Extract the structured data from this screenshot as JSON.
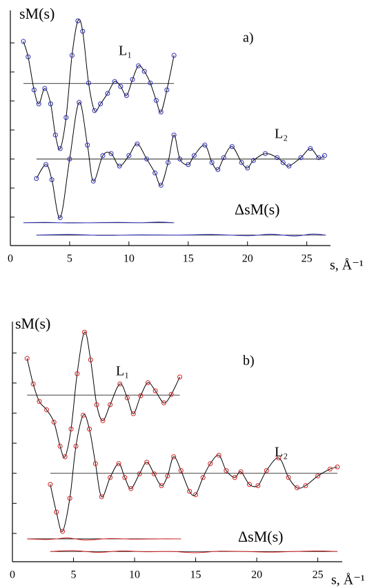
{
  "chart_data": [
    {
      "type": "line",
      "panel_label": "a)",
      "ylabel": "sM(s)",
      "xlabel": "s, Å⁻¹",
      "xlim": [
        0,
        27
      ],
      "xticks": [
        0,
        5,
        10,
        15,
        20,
        25
      ],
      "ylim": [
        -0.98,
        7.12
      ],
      "yticks": [
        0,
        1,
        2,
        3,
        4,
        5,
        6
      ],
      "annotations": [
        {
          "text": "ΔsM(s)"
        }
      ],
      "series": [
        {
          "name": "L₁",
          "color": "#2a2ab8",
          "line_color": "#000000",
          "markers": true,
          "baseline": 4.6,
          "x": [
            1.1,
            1.5,
            2,
            2.4,
            2.9,
            3.4,
            3.8,
            4.2,
            4.7,
            5.2,
            5.7,
            6.1,
            6.6,
            7.1,
            7.6,
            8.2,
            8.8,
            9.3,
            9.8,
            10.3,
            10.8,
            11.3,
            11.8,
            12.3,
            12.7,
            13.2,
            13.8
          ],
          "values": [
            6.05,
            5.52,
            4.38,
            3.9,
            4.43,
            3.9,
            2.83,
            2.36,
            3.43,
            5.57,
            6.76,
            6.4,
            4.62,
            3.67,
            3.9,
            4.26,
            4.67,
            4.5,
            4.19,
            4.74,
            5.21,
            5.02,
            4.62,
            4.02,
            3.62,
            4.38,
            5.57
          ]
        },
        {
          "name": "L₂",
          "color": "#2a2ab8",
          "line_color": "#000000",
          "markers": true,
          "baseline": 2.0,
          "x": [
            2.2,
            3,
            3.5,
            4.2,
            5,
            5.8,
            6.5,
            7,
            7.8,
            8.5,
            9.2,
            10,
            10.7,
            11.5,
            12.2,
            12.7,
            13.3,
            13.8,
            14.3,
            15,
            15.5,
            16.4,
            17,
            17.5,
            18,
            18.7,
            19.5,
            20,
            20.5,
            21.5,
            22.5,
            23,
            23.5,
            24.5,
            25.3,
            26,
            26.5
          ],
          "values": [
            1.33,
            1.81,
            1.29,
            -0.02,
            2.0,
            3.95,
            2.48,
            1.24,
            2.12,
            2.19,
            1.76,
            2.12,
            2.52,
            2.0,
            1.52,
            1.1,
            1.88,
            2.83,
            2.0,
            1.81,
            2.12,
            2.48,
            1.88,
            1.64,
            2.05,
            2.43,
            1.88,
            1.69,
            1.95,
            2.19,
            2.05,
            1.88,
            1.76,
            2.05,
            2.36,
            2.05,
            2.12
          ]
        },
        {
          "color": "#2a2ab8",
          "line_color": "#2a2ab8",
          "markers": false,
          "baseline": -0.19,
          "x": [
            1.1,
            3,
            5,
            7,
            9,
            11,
            12.5,
            13.8
          ],
          "values": [
            -0.19,
            -0.18,
            -0.2,
            -0.19,
            -0.18,
            -0.19,
            -0.17,
            -0.19
          ]
        },
        {
          "color": "#2a2ab8",
          "line_color": "#2a2ab8",
          "markers": false,
          "baseline": -0.62,
          "x": [
            2.2,
            5,
            8,
            11,
            14,
            17,
            20,
            22,
            24,
            25.5,
            26.6
          ],
          "values": [
            -0.62,
            -0.6,
            -0.63,
            -0.61,
            -0.62,
            -0.6,
            -0.64,
            -0.59,
            -0.65,
            -0.58,
            -0.62
          ]
        }
      ]
    },
    {
      "type": "line",
      "panel_label": "b)",
      "ylabel": "sM(s)",
      "xlabel": "s, Å⁻¹",
      "xlim": [
        0,
        27
      ],
      "xticks": [
        0,
        5,
        10,
        15,
        20,
        25
      ],
      "ylim": [
        -0.94,
        7.04
      ],
      "yticks": [
        0,
        1,
        2,
        3,
        4,
        5,
        6
      ],
      "annotations": [
        {
          "text": "ΔsM(s)"
        }
      ],
      "series": [
        {
          "name": "L₁",
          "color": "#d42020",
          "line_color": "#000000",
          "markers": true,
          "baseline": 4.6,
          "x": [
            1.2,
            1.7,
            2.2,
            2.8,
            3.4,
            3.9,
            4.3,
            4.8,
            5.3,
            5.9,
            6.4,
            6.9,
            7.4,
            8,
            8.8,
            9.4,
            9.9,
            10.5,
            11.1,
            11.7,
            12.4,
            13,
            13.7
          ],
          "values": [
            5.82,
            4.97,
            4.39,
            4.11,
            3.7,
            2.9,
            2.55,
            3.47,
            5.31,
            6.69,
            5.77,
            4.28,
            3.75,
            4.28,
            4.97,
            4.51,
            3.98,
            4.58,
            5.01,
            4.74,
            4.34,
            4.62,
            5.2
          ]
        },
        {
          "name": "L₂",
          "color": "#d42020",
          "line_color": "#000000",
          "markers": true,
          "baseline": 2.0,
          "x": [
            3.1,
            3.6,
            4.1,
            4.7,
            5.2,
            5.8,
            6.3,
            6.8,
            7.3,
            8,
            8.7,
            9.2,
            9.7,
            10.4,
            11,
            11.6,
            12.2,
            12.7,
            13.2,
            13.8,
            14.5,
            15,
            15.6,
            16.2,
            16.9,
            17.5,
            18.2,
            18.7,
            19.4,
            20.1,
            20.8,
            21.8,
            22.6,
            23.3,
            24,
            25,
            26,
            26.6
          ],
          "values": [
            1.63,
            0.71,
            0.07,
            1.17,
            2.9,
            3.93,
            3.47,
            2.32,
            1.22,
            1.86,
            2.32,
            1.86,
            1.49,
            1.98,
            2.37,
            1.98,
            1.59,
            1.91,
            2.55,
            2.09,
            1.4,
            1.29,
            1.86,
            2.32,
            2.6,
            2.09,
            1.86,
            2.05,
            1.63,
            1.59,
            2.09,
            2.51,
            1.86,
            1.52,
            1.59,
            1.91,
            2.14,
            2.21
          ]
        },
        {
          "color": "#d42020",
          "line_color": "#d42020",
          "markers": false,
          "baseline": -0.18,
          "x": [
            1.2,
            3,
            4.5,
            6,
            8,
            10,
            12,
            13.8
          ],
          "values": [
            -0.18,
            -0.2,
            -0.15,
            -0.22,
            -0.17,
            -0.19,
            -0.18,
            -0.18
          ]
        },
        {
          "color": "#d42020",
          "line_color": "#d42020",
          "markers": false,
          "baseline": -0.6,
          "x": [
            3.1,
            5,
            7,
            9,
            11,
            13,
            15,
            17,
            19,
            21,
            23,
            25,
            26.6
          ],
          "values": [
            -0.6,
            -0.57,
            -0.63,
            -0.58,
            -0.61,
            -0.6,
            -0.64,
            -0.59,
            -0.6,
            -0.62,
            -0.6,
            -0.58,
            -0.6
          ]
        }
      ]
    }
  ]
}
